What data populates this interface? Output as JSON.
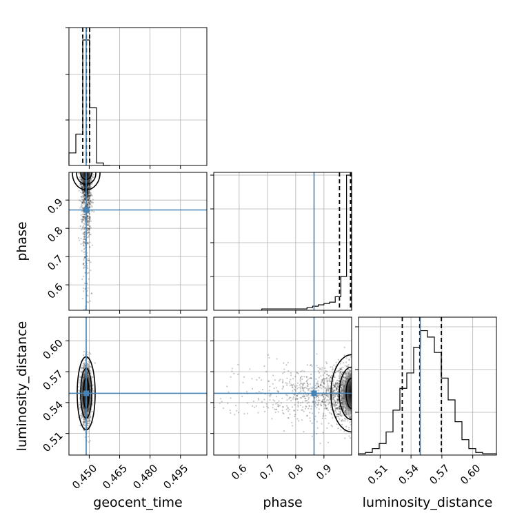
{
  "chart_data": {
    "type": "corner",
    "parameters": [
      "geocent_time",
      "phase",
      "luminosity_distance"
    ],
    "labels": {
      "geocent_time": "geocent_time",
      "phase": "phase",
      "luminosity_distance": "luminosity_distance"
    },
    "ranges": {
      "geocent_time": [
        0.44,
        0.508
      ],
      "phase": [
        0.51,
        0.998
      ],
      "luminosity_distance": [
        0.489,
        0.623
      ]
    },
    "ticks": {
      "geocent_time": [
        {
          "value": 0.45,
          "label": "0.450"
        },
        {
          "value": 0.465,
          "label": "0.465"
        },
        {
          "value": 0.48,
          "label": "0.480"
        },
        {
          "value": 0.495,
          "label": "0.495"
        }
      ],
      "phase_x": [
        {
          "value": 0.6,
          "label": "0.6"
        },
        {
          "value": 0.7,
          "label": "0.7"
        },
        {
          "value": 0.8,
          "label": "0.8"
        },
        {
          "value": 0.9,
          "label": "0.9"
        }
      ],
      "phase_y": [
        {
          "value": 0.6,
          "label": "0.6"
        },
        {
          "value": 0.7,
          "label": "0.7"
        },
        {
          "value": 0.8,
          "label": "0.8"
        },
        {
          "value": 0.9,
          "label": "0.9"
        }
      ],
      "luminosity_distance": [
        {
          "value": 0.51,
          "label": "0.51"
        },
        {
          "value": 0.54,
          "label": "0.54"
        },
        {
          "value": 0.57,
          "label": "0.57"
        },
        {
          "value": 0.6,
          "label": "0.60"
        }
      ]
    },
    "truths": {
      "geocent_time": 0.4485,
      "phase": 0.865,
      "luminosity_distance": 0.549
    },
    "quantiles": {
      "geocent_time": [
        0.4468,
        0.4486,
        0.4502
      ],
      "phase": [
        0.955,
        0.994,
        0.997
      ],
      "luminosity_distance": [
        0.5315,
        0.5485,
        0.5695
      ]
    },
    "histograms": {
      "geocent_time": {
        "edges": [
          0.44,
          0.4434,
          0.4468,
          0.4502,
          0.4536,
          0.457,
          0.4604
        ],
        "counts": [
          0.1,
          0.25,
          1.0,
          0.46,
          0.02,
          0.0
        ]
      },
      "phase": {
        "edges": [
          0.68,
          0.84,
          0.86,
          0.88,
          0.9,
          0.92,
          0.94,
          0.96,
          0.98,
          0.998
        ],
        "counts": [
          0.01,
          0.02,
          0.03,
          0.04,
          0.05,
          0.06,
          0.1,
          0.25,
          1.0
        ]
      },
      "luminosity_distance": {
        "edges": [
          0.489,
          0.4957,
          0.5024,
          0.5091,
          0.5158,
          0.5225,
          0.5292,
          0.5359,
          0.5426,
          0.5493,
          0.556,
          0.5627,
          0.5694,
          0.5761,
          0.5828,
          0.5895,
          0.5962,
          0.6029,
          0.6096,
          0.6163,
          0.623
        ],
        "counts": [
          0.01,
          0.02,
          0.05,
          0.09,
          0.18,
          0.35,
          0.52,
          0.64,
          0.84,
          0.97,
          0.92,
          0.8,
          0.6,
          0.43,
          0.26,
          0.12,
          0.05,
          0.02,
          0.01,
          0.01
        ]
      }
    },
    "colors": {
      "truth": "#4682b4",
      "line": "#000000",
      "grid": "#b0b0b0"
    },
    "grid": true
  }
}
